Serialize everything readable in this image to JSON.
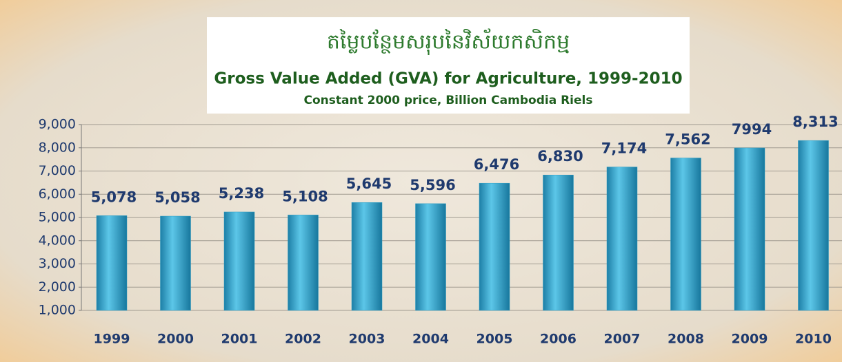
{
  "chart_data": {
    "type": "bar",
    "title": "តម្លៃបន្ថែមសរុបនៃវិស័យកសិកម្ម",
    "subtitle": "Gross Value Added (GVA) for Agriculture, 1999-2010",
    "note": "Constant 2000 price, Billion Cambodia Riels",
    "categories": [
      "1999",
      "2000",
      "2001",
      "2002",
      "2003",
      "2004",
      "2005",
      "2006",
      "2007",
      "2008",
      "2009",
      "2010"
    ],
    "values": [
      5078,
      5058,
      5238,
      5108,
      5645,
      5596,
      6476,
      6830,
      7174,
      7562,
      7994,
      8313
    ],
    "value_labels": [
      "5,078",
      "5,058",
      "5,238",
      "5,108",
      "5,645",
      "5,596",
      "6,476",
      "6,830",
      "7,174",
      "7,562",
      "7994",
      "8,313"
    ],
    "color": "#2a9cc4",
    "ylim": [
      1000,
      9000
    ],
    "yticks": [
      {
        "value": 1000,
        "label": "1,000"
      },
      {
        "value": 2000,
        "label": "2,000"
      },
      {
        "value": 3000,
        "label": "3,000"
      },
      {
        "value": 4000,
        "label": "4,000"
      },
      {
        "value": 5000,
        "label": "5,000"
      },
      {
        "value": 6000,
        "label": "6,000"
      },
      {
        "value": 7000,
        "label": "7,000"
      },
      {
        "value": 8000,
        "label": "8,000"
      },
      {
        "value": 9000,
        "label": "9,000"
      }
    ],
    "grid": true
  }
}
